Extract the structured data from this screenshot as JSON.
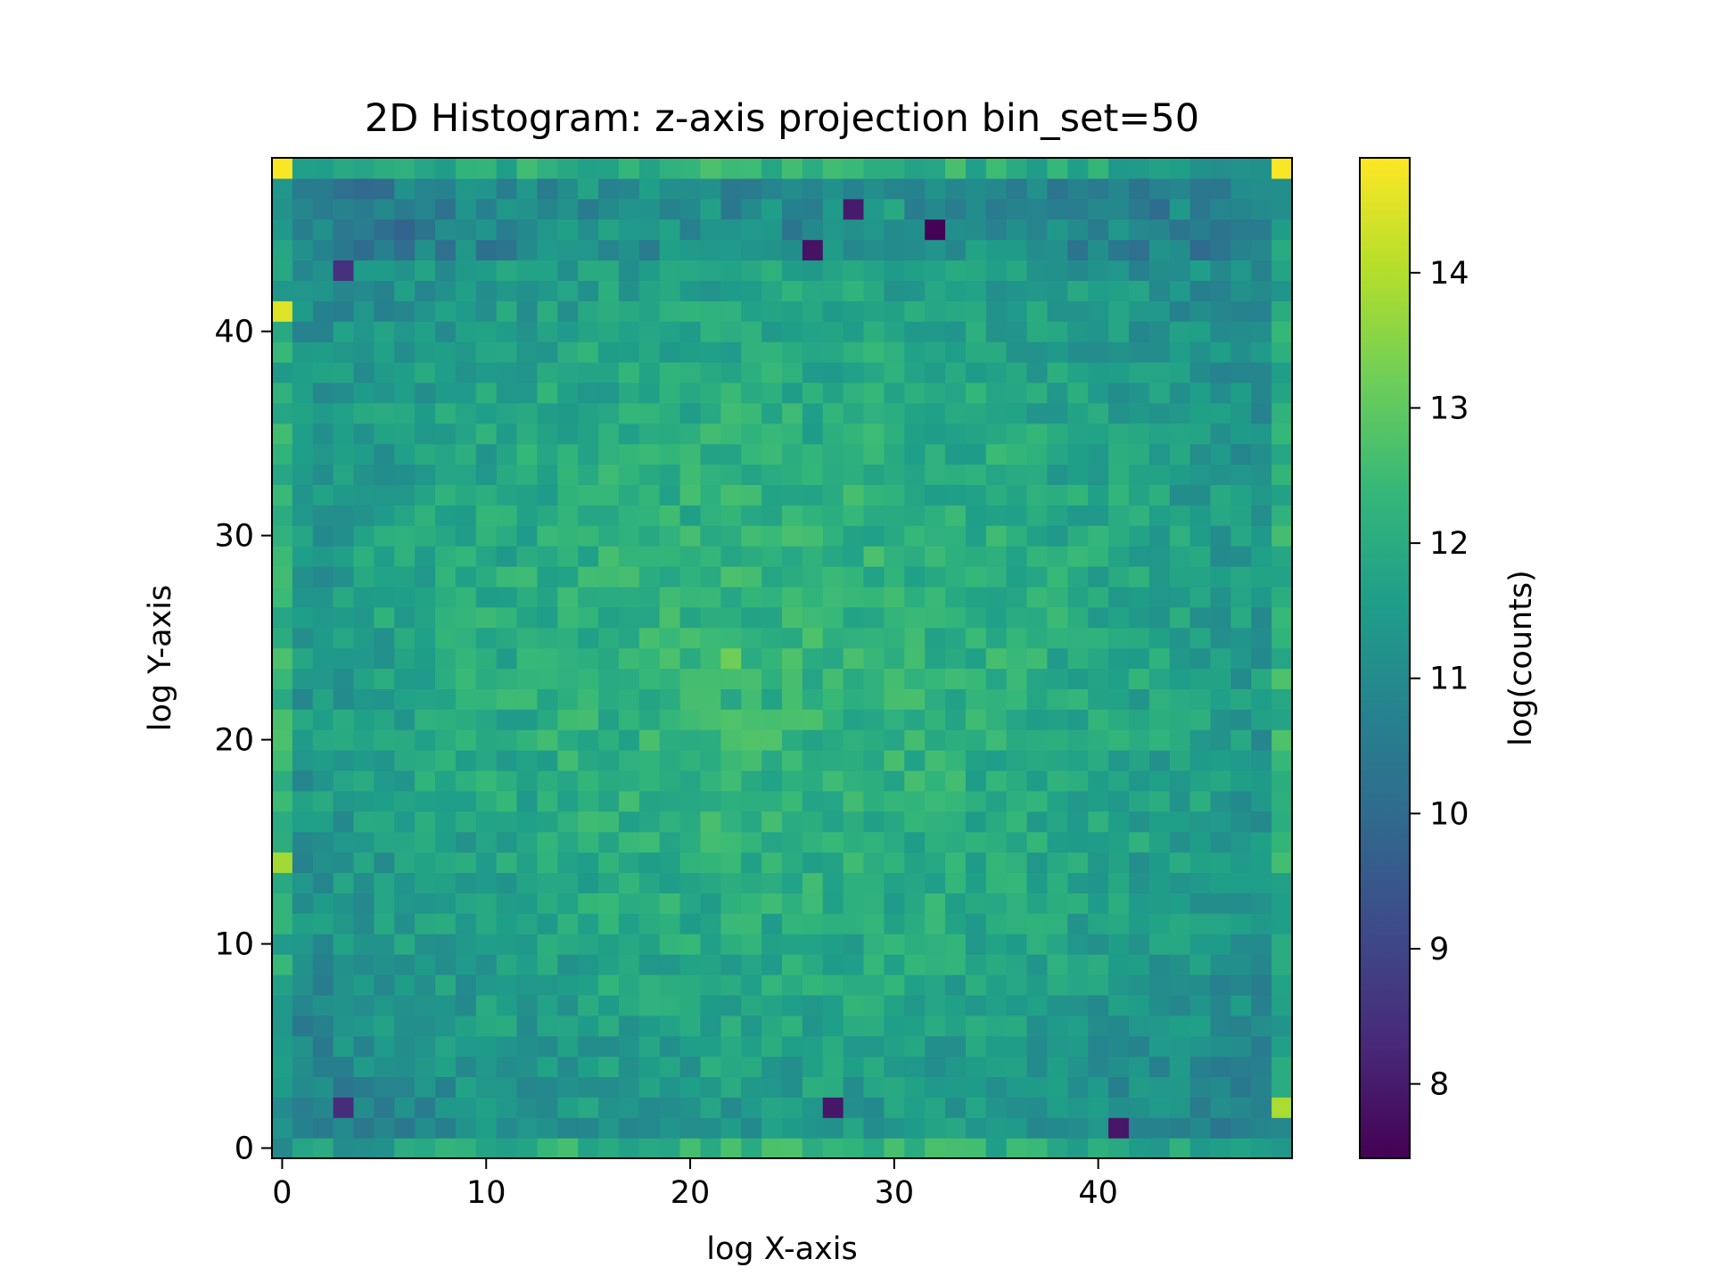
{
  "chart_data": {
    "type": "heatmap",
    "title": "2D Histogram: z-axis projection bin_set=50",
    "xlabel": "log X-axis",
    "ylabel": "log Y-axis",
    "colorbar_label": "log(counts)",
    "colormap": "viridis",
    "bins": 50,
    "xlim": [
      -0.5,
      49.5
    ],
    "ylim": [
      -0.5,
      48.5
    ],
    "color_range": [
      7.45,
      14.85
    ],
    "xticks": [
      0,
      10,
      20,
      30,
      40
    ],
    "yticks": [
      0,
      10,
      20,
      30,
      40
    ],
    "colorbar_ticks": [
      8,
      9,
      10,
      11,
      12,
      13,
      14
    ],
    "grid": false,
    "hotspots": [
      {
        "x": 0,
        "y": 48,
        "value": 14.8
      },
      {
        "x": 49,
        "y": 48,
        "value": 14.8
      },
      {
        "x": 0,
        "y": 41,
        "value": 14.5
      },
      {
        "x": 0,
        "y": 14,
        "value": 13.8
      },
      {
        "x": 49,
        "y": 2,
        "value": 13.9
      },
      {
        "x": 22,
        "y": 24,
        "value": 13.2
      },
      {
        "x": 32,
        "y": 45,
        "value": 7.5
      },
      {
        "x": 28,
        "y": 46,
        "value": 8.0
      },
      {
        "x": 26,
        "y": 44,
        "value": 7.8
      },
      {
        "x": 41,
        "y": 1,
        "value": 7.9
      },
      {
        "x": 27,
        "y": 2,
        "value": 7.9
      },
      {
        "x": 3,
        "y": 2,
        "value": 8.4
      },
      {
        "x": 3,
        "y": 43,
        "value": 8.5
      }
    ]
  }
}
